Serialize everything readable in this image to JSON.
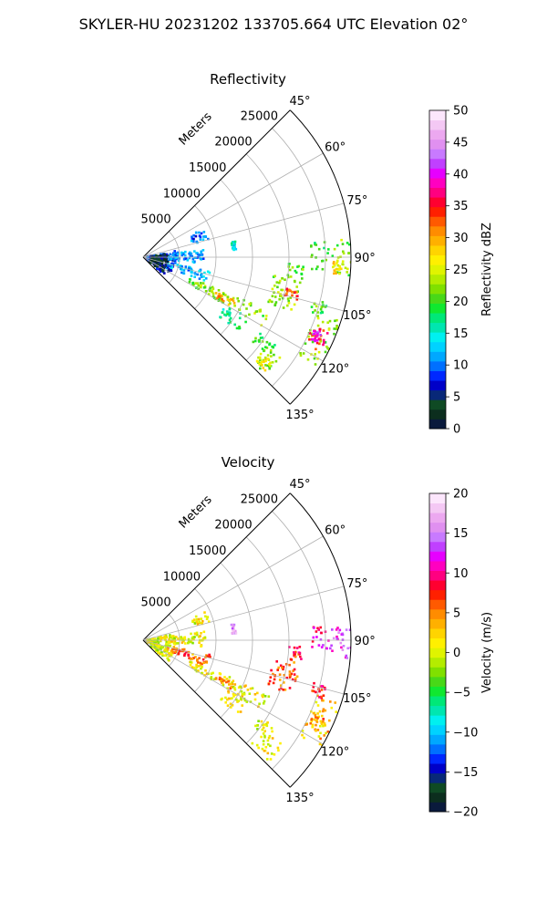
{
  "figure": {
    "suptitle": "SKYLER-HU  20231202  133705.664 UTC Elevation 02°"
  },
  "chart_data": [
    {
      "type": "heatmap",
      "subtype": "polar-sector-ppi",
      "title": "Reflectivity",
      "range_label": "Meters",
      "theta_ticks": [
        "45°",
        "60°",
        "75°",
        "90°",
        "105°",
        "120°",
        "135°"
      ],
      "theta_tick_values": [
        45,
        60,
        75,
        90,
        105,
        120,
        135
      ],
      "range_ticks": [
        "5000",
        "10000",
        "15000",
        "20000",
        "25000"
      ],
      "range_tick_values": [
        5000,
        10000,
        15000,
        20000,
        25000
      ],
      "range_max": 28500,
      "theta_range": [
        45,
        135
      ],
      "grid": true,
      "colorbar": {
        "label": "Reflectivity dBZ",
        "vmin": 0,
        "vmax": 50,
        "ticks": [
          "0",
          "5",
          "10",
          "15",
          "20",
          "25",
          "30",
          "35",
          "40",
          "45",
          "50"
        ],
        "tick_values": [
          0,
          5,
          10,
          15,
          20,
          25,
          30,
          35,
          40,
          45,
          50
        ],
        "colors": [
          "#0a1a3c",
          "#0c2e1e",
          "#0f4a24",
          "#082878",
          "#0000c8",
          "#0028ff",
          "#0070ff",
          "#00a8ff",
          "#00d2ff",
          "#00f0f0",
          "#00e6b0",
          "#00e878",
          "#10e830",
          "#48d818",
          "#80e000",
          "#b4ec00",
          "#e0f400",
          "#fff000",
          "#ffd400",
          "#ffb000",
          "#ff8c00",
          "#ff5a00",
          "#ff2000",
          "#ff0030",
          "#ff0080",
          "#ff00c0",
          "#e600ff",
          "#c040ff",
          "#c87aff",
          "#e090f0",
          "#eca8f0",
          "#f4c8f4",
          "#fce6fc"
        ]
      },
      "echoes": [
        {
          "theta": [
            80,
            86
          ],
          "r": [
            12200,
            12800
          ],
          "value": 14
        },
        {
          "theta": [
            85,
            94
          ],
          "r": [
            23000,
            25500
          ],
          "value": 20
        },
        {
          "theta": [
            85,
            95
          ],
          "r": [
            25500,
            28500
          ],
          "value": 22
        },
        {
          "theta": [
            91,
            95
          ],
          "r": [
            26000,
            27500
          ],
          "value": 27
        },
        {
          "theta": [
            92,
            98
          ],
          "r": [
            20000,
            22000
          ],
          "value": 21
        },
        {
          "theta": [
            98,
            110
          ],
          "r": [
            18000,
            22000
          ],
          "value": 22
        },
        {
          "theta": [
            102,
            106
          ],
          "r": [
            20000,
            22000
          ],
          "value": 33
        },
        {
          "theta": [
            104,
            108
          ],
          "r": [
            24000,
            26000
          ],
          "value": 20
        },
        {
          "theta": [
            108,
            122
          ],
          "r": [
            25000,
            28500
          ],
          "value": 22
        },
        {
          "theta": [
            112,
            118
          ],
          "r": [
            25000,
            27500
          ],
          "value": 35
        },
        {
          "theta": [
            113,
            116
          ],
          "r": [
            25500,
            26800
          ],
          "value": 40
        },
        {
          "theta": [
            113,
            120
          ],
          "r": [
            7000,
            19000
          ],
          "value": 22
        },
        {
          "theta": [
            115,
            119
          ],
          "r": [
            11000,
            14000
          ],
          "value": 30
        },
        {
          "theta": [
            123,
            128
          ],
          "r": [
            19000,
            22000
          ],
          "value": 20
        },
        {
          "theta": [
            126,
            134
          ],
          "r": [
            20500,
            24000
          ],
          "value": 22
        },
        {
          "theta": [
            129,
            133
          ],
          "r": [
            21000,
            23000
          ],
          "value": 26
        },
        {
          "theta": [
            78,
            130
          ],
          "r": [
            500,
            4500
          ],
          "value": 8
        },
        {
          "theta": [
            80,
            128
          ],
          "r": [
            1000,
            3500
          ],
          "value": 4
        },
        {
          "theta": [
            82,
            96
          ],
          "r": [
            3500,
            8500
          ],
          "value": 11
        },
        {
          "theta": [
            102,
            112
          ],
          "r": [
            3500,
            9500
          ],
          "value": 12
        },
        {
          "theta": [
            65,
            75
          ],
          "r": [
            7000,
            9500
          ],
          "value": 10
        },
        {
          "theta": [
            120,
            128
          ],
          "r": [
            13000,
            17000
          ],
          "value": 18
        }
      ]
    },
    {
      "type": "heatmap",
      "subtype": "polar-sector-ppi",
      "title": "Velocity",
      "range_label": "Meters",
      "theta_ticks": [
        "45°",
        "60°",
        "75°",
        "90°",
        "105°",
        "120°",
        "135°"
      ],
      "theta_tick_values": [
        45,
        60,
        75,
        90,
        105,
        120,
        135
      ],
      "range_ticks": [
        "5000",
        "10000",
        "15000",
        "20000",
        "25000"
      ],
      "range_tick_values": [
        5000,
        10000,
        15000,
        20000,
        25000
      ],
      "range_max": 28500,
      "theta_range": [
        45,
        135
      ],
      "grid": true,
      "colorbar": {
        "label": "Velocity (m/s)",
        "vmin": -20,
        "vmax": 20,
        "ticks": [
          "−20",
          "−15",
          "−10",
          "−5",
          "0",
          "5",
          "10",
          "15",
          "20"
        ],
        "tick_values": [
          -20,
          -15,
          -10,
          -5,
          0,
          5,
          10,
          15,
          20
        ],
        "colors": [
          "#0a1a3c",
          "#0c2e1e",
          "#0f4a24",
          "#082878",
          "#0000c8",
          "#0028ff",
          "#0070ff",
          "#00a8ff",
          "#00d2ff",
          "#00f0f0",
          "#00e6b0",
          "#00e878",
          "#10e830",
          "#48d818",
          "#80e000",
          "#b4ec00",
          "#e0f400",
          "#fff000",
          "#ffd400",
          "#ffb000",
          "#ff8c00",
          "#ff5a00",
          "#ff2000",
          "#ff0030",
          "#ff0080",
          "#ff00c0",
          "#e600ff",
          "#c040ff",
          "#c87aff",
          "#e090f0",
          "#eca8f0",
          "#f4c8f4",
          "#fce6fc"
        ]
      },
      "echoes": [
        {
          "theta": [
            80,
            86
          ],
          "r": [
            12200,
            12800
          ],
          "value": 16
        },
        {
          "theta": [
            85,
            94
          ],
          "r": [
            23000,
            25500
          ],
          "value": 11
        },
        {
          "theta": [
            85,
            95
          ],
          "r": [
            25500,
            28500
          ],
          "value": 13
        },
        {
          "theta": [
            92,
            98
          ],
          "r": [
            20000,
            22000
          ],
          "value": 8
        },
        {
          "theta": [
            98,
            110
          ],
          "r": [
            18000,
            22000
          ],
          "value": 6
        },
        {
          "theta": [
            104,
            108
          ],
          "r": [
            24000,
            26000
          ],
          "value": 8
        },
        {
          "theta": [
            108,
            122
          ],
          "r": [
            25000,
            28500
          ],
          "value": 3
        },
        {
          "theta": [
            112,
            118
          ],
          "r": [
            25000,
            27500
          ],
          "value": 4
        },
        {
          "theta": [
            113,
            120
          ],
          "r": [
            7000,
            19000
          ],
          "value": 1
        },
        {
          "theta": [
            115,
            119
          ],
          "r": [
            11000,
            14000
          ],
          "value": 5
        },
        {
          "theta": [
            123,
            128
          ],
          "r": [
            19000,
            22000
          ],
          "value": 0
        },
        {
          "theta": [
            126,
            134
          ],
          "r": [
            20500,
            24000
          ],
          "value": 1
        },
        {
          "theta": [
            78,
            130
          ],
          "r": [
            500,
            4500
          ],
          "value": 0
        },
        {
          "theta": [
            82,
            96
          ],
          "r": [
            3500,
            8500
          ],
          "value": 1
        },
        {
          "theta": [
            102,
            112
          ],
          "r": [
            3500,
            9500
          ],
          "value": 6
        },
        {
          "theta": [
            65,
            75
          ],
          "r": [
            7000,
            9500
          ],
          "value": 1
        },
        {
          "theta": [
            120,
            128
          ],
          "r": [
            13000,
            17000
          ],
          "value": 1
        }
      ]
    }
  ]
}
